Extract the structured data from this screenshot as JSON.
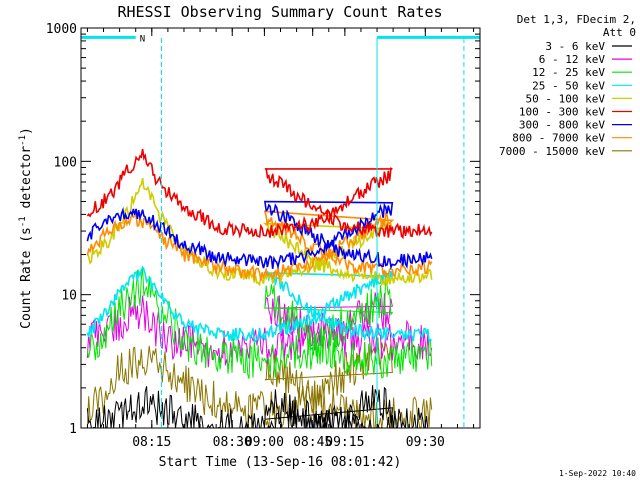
{
  "chart_data": {
    "type": "line",
    "title": "RHESSI Observing Summary Count Rates",
    "xlabel": "Start Time (13-Sep-16 08:01:42)",
    "ylabel_main": "Count Rate (s",
    "ylabel_sup1": "-1",
    "ylabel_mid": " detector",
    "ylabel_sup2": "-1",
    "ylabel_end": ")",
    "yscale": "log",
    "ylim": [
      1,
      1000
    ],
    "xlim_minutes": [
      8.03,
      9.67
    ],
    "x_ticks": [
      {
        "value": 8.25,
        "label": "08:15"
      },
      {
        "value": 8.5,
        "label": "08:30"
      },
      {
        "value": 8.75,
        "label": "08:45"
      },
      {
        "value": 9.0,
        "label": "09:00"
      },
      {
        "value": 9.25,
        "label": "09:15"
      },
      {
        "value": 9.5,
        "label": "09:30"
      }
    ],
    "y_ticks": [
      {
        "value": 1,
        "label": "1"
      },
      {
        "value": 10,
        "label": "10"
      },
      {
        "value": 100,
        "label": "100"
      },
      {
        "value": 1000,
        "label": "1000"
      }
    ],
    "legend_header": [
      "Det 1,3, FDecim 2,",
      "Att 0"
    ],
    "legend_position": "right",
    "series": [
      {
        "name": "3 - 6 keV",
        "color": "#000000",
        "x": [
          8.05,
          8.15,
          8.22,
          8.28,
          8.35,
          8.45,
          8.6,
          8.75,
          8.85,
          8.95,
          9.0,
          9.1,
          9.2,
          9.3,
          9.38,
          9.45,
          9.52
        ],
        "y": [
          1.0,
          1.2,
          1.6,
          1.4,
          1.1,
          1.0,
          1.0,
          1.0,
          1.3,
          1.6,
          1.5,
          1.2,
          1.0,
          1.0,
          1.0,
          1.0,
          1.0
        ]
      },
      {
        "name": "6 - 12 keV",
        "color": "#e600e6",
        "x": [
          8.05,
          8.15,
          8.2,
          8.25,
          8.3,
          8.4,
          8.55,
          8.7,
          8.85,
          8.95,
          9.0,
          9.05,
          9.15,
          9.3,
          9.52
        ],
        "y": [
          4.5,
          6,
          8,
          6,
          4.5,
          4,
          4,
          4.5,
          6,
          7.5,
          8,
          7,
          5,
          4.5,
          4.5
        ]
      },
      {
        "name": "12 - 25 keV",
        "color": "#00e600",
        "x": [
          8.05,
          8.12,
          8.18,
          8.22,
          8.28,
          8.35,
          8.45,
          8.6,
          8.75,
          8.85,
          8.95,
          9.0,
          9.05,
          9.15,
          9.25,
          9.4,
          9.52
        ],
        "y": [
          3.5,
          6,
          10,
          12,
          8,
          4.5,
          3.5,
          3.2,
          3.8,
          6,
          9,
          10,
          8,
          4.5,
          3.5,
          3.3,
          3.5
        ]
      },
      {
        "name": "25 - 50 keV",
        "color": "#00e5ee",
        "x": [
          8.05,
          8.12,
          8.18,
          8.22,
          8.27,
          8.35,
          8.45,
          8.6,
          8.75,
          8.85,
          8.95,
          9.0,
          9.05,
          9.15,
          9.25,
          9.4,
          9.52
        ],
        "y": [
          5,
          8,
          13,
          15,
          10,
          6,
          5,
          5,
          6.5,
          9.5,
          13,
          15,
          12,
          7.5,
          5.5,
          5,
          5
        ]
      },
      {
        "name": "50 - 100 keV",
        "color": "#cdcd00",
        "x": [
          8.05,
          8.12,
          8.18,
          8.22,
          8.27,
          8.35,
          8.45,
          8.6,
          8.75,
          8.85,
          8.95,
          9.0,
          9.05,
          9.15,
          9.25,
          9.4,
          9.52
        ],
        "y": [
          18,
          26,
          45,
          75,
          40,
          22,
          15,
          13,
          16,
          22,
          30,
          34,
          28,
          18,
          14,
          13,
          14
        ]
      },
      {
        "name": "100 - 300 keV",
        "color": "#ee0000",
        "x": [
          8.05,
          8.12,
          8.18,
          8.22,
          8.27,
          8.35,
          8.45,
          8.6,
          8.75,
          8.85,
          8.95,
          9.0,
          9.05,
          9.15,
          9.25,
          9.4,
          9.52
        ],
        "y": [
          40,
          55,
          90,
          115,
          70,
          45,
          32,
          29,
          34,
          48,
          70,
          80,
          68,
          45,
          32,
          30,
          31
        ]
      },
      {
        "name": "300 - 800 keV",
        "color": "#0000ee",
        "x": [
          8.05,
          8.12,
          8.18,
          8.22,
          8.27,
          8.35,
          8.45,
          8.6,
          8.75,
          8.85,
          8.95,
          9.0,
          9.05,
          9.15,
          9.25,
          9.4,
          9.52
        ],
        "y": [
          28,
          36,
          42,
          41,
          33,
          24,
          19,
          17,
          20,
          28,
          40,
          45,
          40,
          28,
          20,
          18,
          19
        ]
      },
      {
        "name": "800 - 7000 keV",
        "color": "#ff8c00",
        "x": [
          8.05,
          8.12,
          8.18,
          8.22,
          8.27,
          8.35,
          8.45,
          8.6,
          8.75,
          8.85,
          8.95,
          9.0,
          9.05,
          9.15,
          9.25,
          9.4,
          9.52
        ],
        "y": [
          22,
          30,
          36,
          35,
          28,
          20,
          16,
          14,
          17,
          24,
          34,
          38,
          33,
          23,
          17,
          15,
          16
        ]
      },
      {
        "name": "7000 - 15000 keV",
        "color": "#8b7500",
        "x": [
          8.05,
          8.15,
          8.22,
          8.3,
          8.4,
          8.55,
          8.7,
          8.85,
          8.95,
          9.05,
          9.15,
          9.3,
          9.52
        ],
        "y": [
          1.3,
          2.6,
          3.5,
          2.6,
          1.8,
          1.3,
          1.4,
          2.6,
          3.6,
          2.6,
          1.6,
          1.2,
          1.2
        ]
      }
    ],
    "annotations": [
      {
        "type": "bar",
        "label": "N",
        "x_start": 8.03,
        "x_end": 8.2,
        "y": 850,
        "color": "#00e5ee"
      },
      {
        "type": "bar",
        "label": "",
        "x_start": 9.35,
        "x_end": 9.67,
        "y": 850,
        "color": "#00e5ee"
      },
      {
        "type": "vline",
        "x": 8.28,
        "color": "#00e5ee",
        "style": "dashed"
      },
      {
        "type": "vline",
        "x": 9.35,
        "color": "#00e5ee",
        "style": "solid"
      },
      {
        "type": "vline",
        "x": 9.62,
        "color": "#00e5ee",
        "style": "dashed"
      }
    ]
  },
  "timestamp": "1-Sep-2022 10:40",
  "bar_label_n": "N"
}
